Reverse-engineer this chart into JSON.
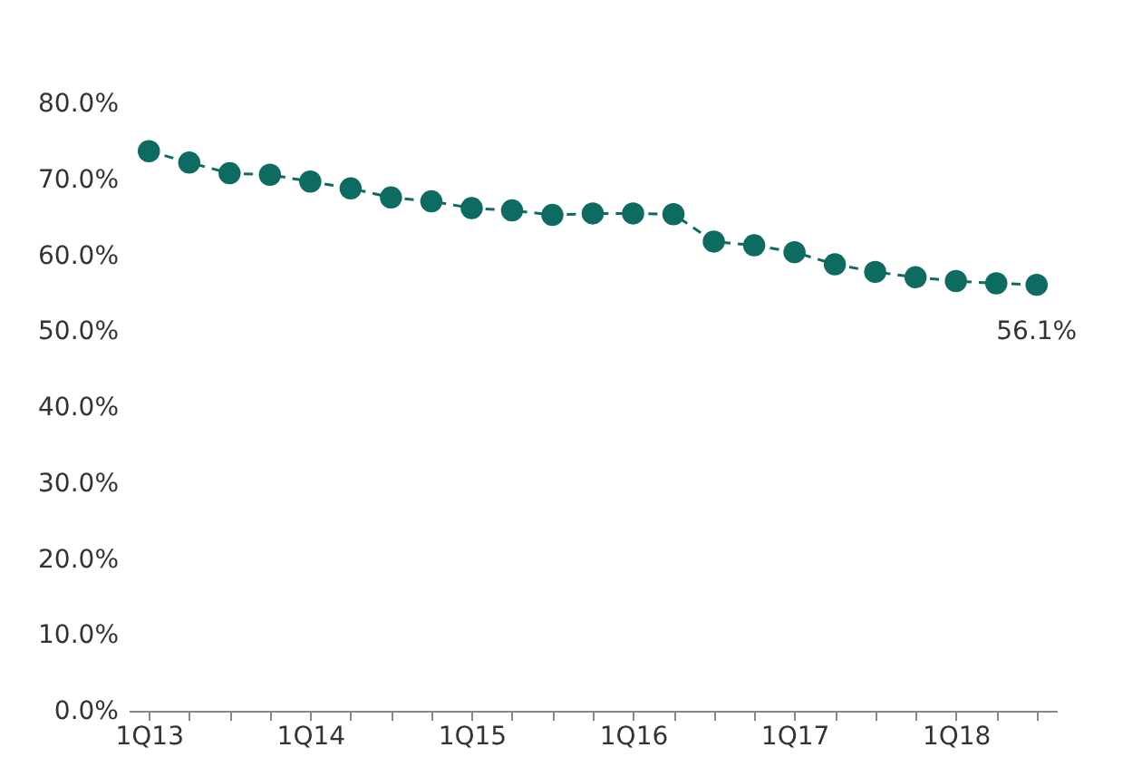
{
  "chart_data": {
    "type": "line",
    "categories": [
      "1Q13",
      null,
      null,
      null,
      "1Q14",
      null,
      null,
      null,
      "1Q15",
      null,
      null,
      null,
      "1Q16",
      null,
      null,
      null,
      "1Q17",
      null,
      null,
      null,
      "1Q18",
      null,
      null
    ],
    "series": [
      {
        "color": "#0d6b62",
        "values": [
          73.7,
          72.2,
          70.8,
          70.6,
          69.7,
          68.8,
          67.6,
          67.1,
          66.2,
          65.9,
          65.3,
          65.5,
          65.5,
          65.4,
          61.8,
          61.3,
          60.4,
          58.8,
          57.8,
          57.1,
          56.6,
          56.3,
          56.1
        ],
        "value_labels": [
          null,
          null,
          null,
          null,
          null,
          null,
          null,
          null,
          null,
          null,
          null,
          null,
          null,
          null,
          null,
          null,
          null,
          null,
          null,
          null,
          null,
          null,
          "56.1%"
        ]
      }
    ],
    "ylim": [
      0,
      80
    ],
    "yticks": [
      {
        "value": 0,
        "label": "0.0%"
      },
      {
        "value": 10,
        "label": "10.0%"
      },
      {
        "value": 20,
        "label": "20.0%"
      },
      {
        "value": 30,
        "label": "30.0%"
      },
      {
        "value": 40,
        "label": "40.0%"
      },
      {
        "value": 50,
        "label": "50.0%"
      },
      {
        "value": 60,
        "label": "60.0%"
      },
      {
        "value": 70,
        "label": "70.0%"
      },
      {
        "value": 80,
        "label": "80.0%"
      }
    ],
    "marker": "circle",
    "line_style": "dashed"
  }
}
